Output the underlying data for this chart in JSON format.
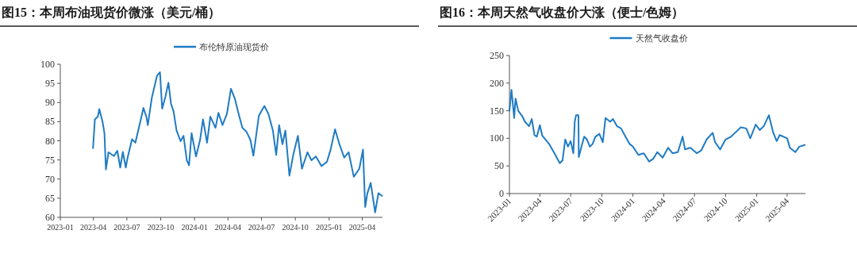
{
  "chart_data": [
    {
      "type": "line",
      "title": "图15：本周布油现货价微涨（美元/桶）",
      "legend": "top",
      "grid": false,
      "xlim": [
        "2023-01-01",
        "2025-05-26"
      ],
      "xticks": [
        "2023-01",
        "2023-04",
        "2023-07",
        "2023-10",
        "2024-01",
        "2024-04",
        "2024-07",
        "2024-10",
        "2025-01",
        "2025-04"
      ],
      "ylim": [
        60,
        100
      ],
      "yticks": [
        60,
        65,
        70,
        75,
        80,
        85,
        90,
        95,
        100
      ],
      "x": [
        "2023-03-31",
        "2023-04-05",
        "2023-04-13",
        "2023-04-17",
        "2023-04-26",
        "2023-05-01",
        "2023-05-04",
        "2023-05-05",
        "2023-05-12",
        "2023-05-27",
        "2023-06-05",
        "2023-06-13",
        "2023-06-20",
        "2023-06-28",
        "2023-07-03",
        "2023-07-15",
        "2023-07-24",
        "2023-08-08",
        "2023-08-15",
        "2023-08-23",
        "2023-08-27",
        "2023-09-07",
        "2023-09-21",
        "2023-09-29",
        "2023-10-05",
        "2023-10-14",
        "2023-10-22",
        "2023-10-29",
        "2023-11-05",
        "2023-11-13",
        "2023-11-24",
        "2023-12-02",
        "2023-12-11",
        "2023-12-17",
        "2023-12-24",
        "2024-01-05",
        "2024-01-16",
        "2024-01-24",
        "2024-02-04",
        "2024-02-13",
        "2024-02-27",
        "2024-03-06",
        "2024-03-17",
        "2024-03-29",
        "2024-04-09",
        "2024-04-20",
        "2024-04-28",
        "2024-05-10",
        "2024-05-21",
        "2024-06-01",
        "2024-06-09",
        "2024-06-24",
        "2024-07-09",
        "2024-07-20",
        "2024-08-01",
        "2024-08-10",
        "2024-08-18",
        "2024-08-27",
        "2024-09-04",
        "2024-09-15",
        "2024-09-26",
        "2024-10-08",
        "2024-10-19",
        "2024-11-03",
        "2024-11-14",
        "2024-11-26",
        "2024-12-11",
        "2024-12-26",
        "2025-01-05",
        "2025-01-17",
        "2025-01-29",
        "2025-02-11",
        "2025-02-23",
        "2025-03-09",
        "2025-03-24",
        "2025-04-03",
        "2025-04-09",
        "2025-04-15",
        "2025-04-24",
        "2025-05-06",
        "2025-05-15",
        "2025-05-25"
      ],
      "series": [
        {
          "name": "布伦特原油现货价",
          "color": "#1f7bc4",
          "values": [
            78.1,
            85.6,
            86.3,
            88.3,
            84.9,
            82,
            74.7,
            72.5,
            77,
            76,
            77.4,
            73,
            77.1,
            73,
            75.6,
            80.4,
            79.5,
            85.6,
            88.6,
            86.3,
            84.1,
            91.3,
            97,
            97.9,
            88.4,
            91.6,
            95.2,
            89.7,
            87.7,
            82.7,
            79.9,
            81.3,
            74.9,
            73.6,
            82,
            75.9,
            80.2,
            85.6,
            79.5,
            86.3,
            83.4,
            87.3,
            84.1,
            87,
            93.6,
            90.9,
            87.7,
            83.4,
            82.4,
            80.2,
            76.1,
            86.6,
            89.1,
            87,
            82.7,
            76.3,
            84.1,
            79.1,
            82.7,
            70.9,
            76.6,
            81.3,
            72.7,
            77,
            74.9,
            75.9,
            73.4,
            74.5,
            77.7,
            83,
            79.1,
            75.6,
            77,
            70.6,
            72.7,
            77.7,
            62.7,
            66.3,
            69,
            61.3,
            66.3,
            65.6
          ]
        }
      ]
    },
    {
      "type": "line",
      "title": "图16：本周天然气收盘价大涨（便士/色姆）",
      "legend": "top",
      "grid": false,
      "xlim": [
        "2023-01-01",
        "2025-05-25"
      ],
      "xticks": [
        "2023-01",
        "2023-04",
        "2023-07",
        "2023-10",
        "2024-01",
        "2024-04",
        "2024-07",
        "2024-10",
        "2025-01",
        "2025-04"
      ],
      "ylim": [
        0,
        250
      ],
      "yticks": [
        0,
        50,
        100,
        150,
        200,
        250
      ],
      "x": [
        "2023-01-01",
        "2023-01-07",
        "2023-01-15",
        "2023-01-19",
        "2023-01-27",
        "2023-02-08",
        "2023-02-16",
        "2023-02-28",
        "2023-03-08",
        "2023-03-16",
        "2023-03-23",
        "2023-04-01",
        "2023-04-08",
        "2023-04-28",
        "2023-05-14",
        "2023-05-30",
        "2023-06-07",
        "2023-06-15",
        "2023-06-23",
        "2023-07-01",
        "2023-07-09",
        "2023-07-13",
        "2023-07-17",
        "2023-07-24",
        "2023-07-25",
        "2023-08-02",
        "2023-08-10",
        "2023-08-18",
        "2023-08-27",
        "2023-09-04",
        "2023-09-12",
        "2023-09-24",
        "2023-10-04",
        "2023-10-12",
        "2023-10-26",
        "2023-11-03",
        "2023-11-15",
        "2023-11-27",
        "2023-12-10",
        "2023-12-22",
        "2024-01-01",
        "2024-01-17",
        "2024-02-02",
        "2024-02-18",
        "2024-03-01",
        "2024-03-13",
        "2024-03-29",
        "2024-04-14",
        "2024-04-27",
        "2024-05-13",
        "2024-05-27",
        "2024-06-03",
        "2024-06-19",
        "2024-07-08",
        "2024-07-21",
        "2024-08-06",
        "2024-08-24",
        "2024-08-31",
        "2024-09-15",
        "2024-10-01",
        "2024-10-17",
        "2024-11-03",
        "2024-11-15",
        "2024-12-01",
        "2024-12-13",
        "2024-12-29",
        "2025-01-10",
        "2025-01-22",
        "2025-02-06",
        "2025-02-19",
        "2025-03-01",
        "2025-03-10",
        "2025-04-01",
        "2025-04-09",
        "2025-04-25",
        "2025-05-07",
        "2025-05-23"
      ],
      "series": [
        {
          "name": "天然气收盘价",
          "color": "#1f7bc4",
          "values": [
            150,
            188,
            137,
            172,
            150,
            140,
            130,
            122,
            135,
            106,
            103,
            124,
            105,
            90,
            73,
            55,
            60,
            98,
            85,
            95,
            73,
            130,
            142,
            142,
            66,
            85,
            103,
            98,
            85,
            90,
            103,
            108,
            93,
            137,
            130,
            135,
            122,
            118,
            103,
            90,
            85,
            70,
            73,
            58,
            63,
            75,
            65,
            83,
            73,
            75,
            103,
            80,
            83,
            73,
            78,
            98,
            110,
            93,
            80,
            98,
            103,
            113,
            120,
            118,
            100,
            125,
            115,
            122,
            142,
            110,
            95,
            106,
            100,
            83,
            75,
            85,
            88
          ]
        }
      ]
    }
  ]
}
